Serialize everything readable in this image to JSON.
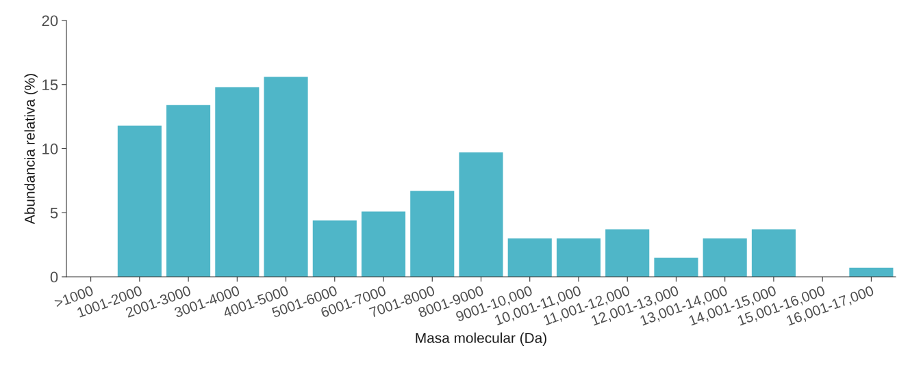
{
  "chart_data": {
    "type": "bar",
    "xlabel": "Masa molecular (Da)",
    "ylabel": "Abundancia relativa (%)",
    "categories": [
      ">1000",
      "1001-2000",
      "2001-3000",
      "3001-4000",
      "4001-5000",
      "5001-6000",
      "6001-7000",
      "7001-8000",
      "8001-9000",
      "9001-10,000",
      "10,001-11,000",
      "11,001-12,000",
      "12,001-13,000",
      "13,001-14,000",
      "14,001-15,000",
      "15,001-16,000",
      "16,001-17,000"
    ],
    "values": [
      0,
      11.8,
      13.4,
      14.8,
      15.6,
      4.4,
      5.1,
      6.7,
      9.7,
      3.0,
      3.0,
      3.7,
      1.5,
      3.0,
      3.7,
      0,
      0.7
    ],
    "color": "#4fb6c8",
    "ylim": [
      0,
      20
    ],
    "yticks": [
      0,
      5,
      10,
      15,
      20
    ],
    "grid": false,
    "legend": false
  }
}
